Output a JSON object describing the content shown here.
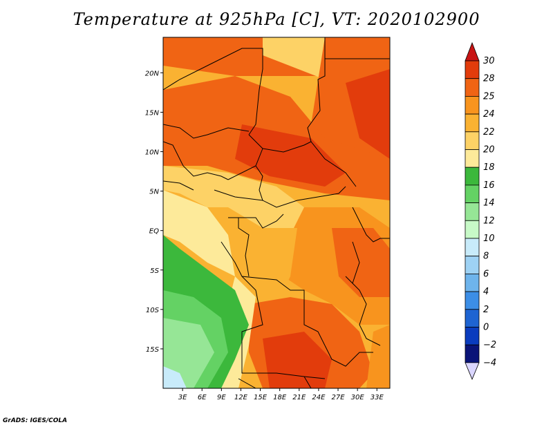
{
  "title": "Temperature at 925hPa [C], VT: 2020102900",
  "footer": "GrADS: IGES/COLA",
  "map": {
    "lon_range": [
      0,
      35
    ],
    "lat_range": [
      -20,
      24.5
    ],
    "lat_ticks": [
      {
        "value": 20,
        "label": "20N"
      },
      {
        "value": 15,
        "label": "15N"
      },
      {
        "value": 10,
        "label": "10N"
      },
      {
        "value": 5,
        "label": "5N"
      },
      {
        "value": 0,
        "label": "EQ"
      },
      {
        "value": -5,
        "label": "5S"
      },
      {
        "value": -10,
        "label": "10S"
      },
      {
        "value": -15,
        "label": "15S"
      }
    ],
    "lon_ticks": [
      {
        "value": 3,
        "label": "3E"
      },
      {
        "value": 6,
        "label": "6E"
      },
      {
        "value": 9,
        "label": "9E"
      },
      {
        "value": 12,
        "label": "12E"
      },
      {
        "value": 15,
        "label": "15E"
      },
      {
        "value": 18,
        "label": "18E"
      },
      {
        "value": 21,
        "label": "21E"
      },
      {
        "value": 24,
        "label": "24E"
      },
      {
        "value": 27,
        "label": "27E"
      },
      {
        "value": 30,
        "label": "30E"
      },
      {
        "value": 33,
        "label": "33E"
      }
    ]
  },
  "colorbar": {
    "labels": [
      "30",
      "28",
      "25",
      "24",
      "22",
      "20",
      "18",
      "16",
      "14",
      "12",
      "10",
      "8",
      "6",
      "4",
      "2",
      "0",
      "−2",
      "−4"
    ],
    "colors": [
      "#e23c0c",
      "#f06414",
      "#f8941e",
      "#fab232",
      "#fdd266",
      "#fdea9a",
      "#3cb83c",
      "#64d264",
      "#96e696",
      "#c8fac8",
      "#c8ebfa",
      "#9ed2f4",
      "#6eb4ec",
      "#3c8ee6",
      "#1e64d2",
      "#0a3cbe",
      "#0a1478",
      "#dad6ff"
    ],
    "top_color": "#c81414",
    "bottom_color": "#dad6ff"
  }
}
